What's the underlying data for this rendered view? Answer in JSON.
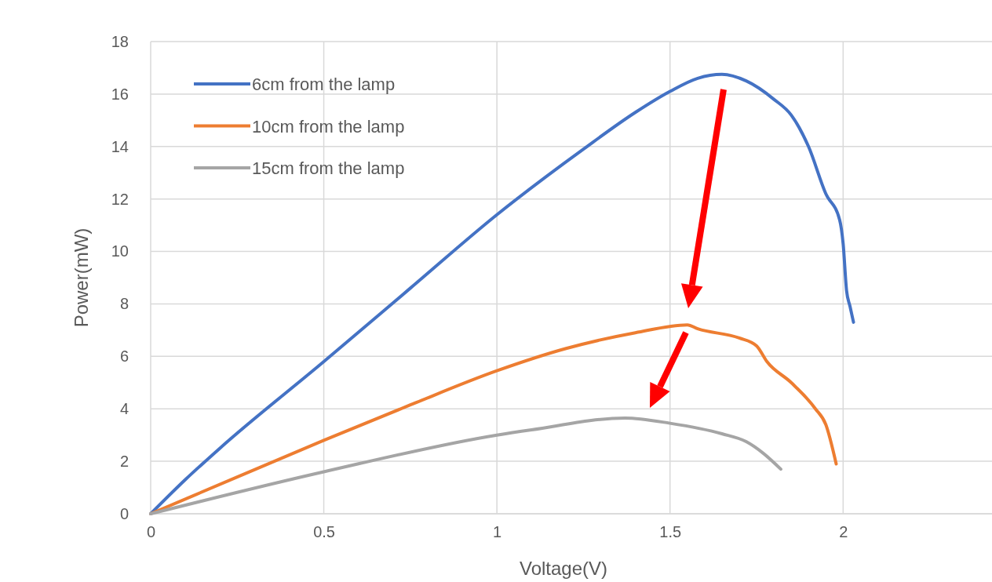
{
  "chart_data": {
    "type": "line",
    "xlabel": "Voltage(V)",
    "ylabel": "Power(mW)",
    "xlim": [
      0,
      2.43
    ],
    "xticks": [
      0,
      0.5,
      1,
      1.5,
      2
    ],
    "ylim": [
      0,
      18
    ],
    "yticks": [
      0,
      2,
      4,
      6,
      8,
      10,
      12,
      14,
      16,
      18
    ],
    "grid": true,
    "legend": "top left",
    "line_style": "solid",
    "marker": "none",
    "series": [
      {
        "name": "6cm from the lamp",
        "color": "#4472c4",
        "x": [
          0,
          0.1,
          0.2,
          0.5,
          0.75,
          1.0,
          1.25,
          1.4,
          1.5,
          1.58,
          1.65,
          1.72,
          1.8,
          1.85,
          1.9,
          1.95,
          1.99,
          2.0,
          2.01,
          2.02,
          2.03
        ],
        "values": [
          0,
          1.3,
          2.5,
          5.8,
          8.6,
          11.4,
          13.9,
          15.3,
          16.1,
          16.6,
          16.75,
          16.5,
          15.8,
          15.2,
          14.0,
          12.2,
          11.2,
          10.3,
          8.5,
          7.9,
          7.3
        ]
      },
      {
        "name": "10cm from the lamp",
        "color": "#ed7d31",
        "x": [
          0,
          0.25,
          0.5,
          0.75,
          1.0,
          1.2,
          1.4,
          1.55,
          1.58,
          1.7,
          1.75,
          1.78,
          1.85,
          1.92,
          1.95,
          1.98
        ],
        "values": [
          0,
          1.4,
          2.8,
          4.15,
          5.45,
          6.3,
          6.9,
          7.2,
          7.05,
          6.7,
          6.4,
          5.8,
          5.0,
          4.0,
          3.4,
          1.9
        ]
      },
      {
        "name": "15cm from the lamp",
        "color": "#a5a5a5",
        "x": [
          0,
          0.5,
          1.0,
          1.1,
          1.37,
          1.5,
          1.65,
          1.72,
          1.77,
          1.82
        ],
        "values": [
          0,
          1.6,
          3.0,
          3.2,
          3.65,
          3.45,
          3.05,
          2.75,
          2.3,
          1.7
        ]
      }
    ]
  }
}
